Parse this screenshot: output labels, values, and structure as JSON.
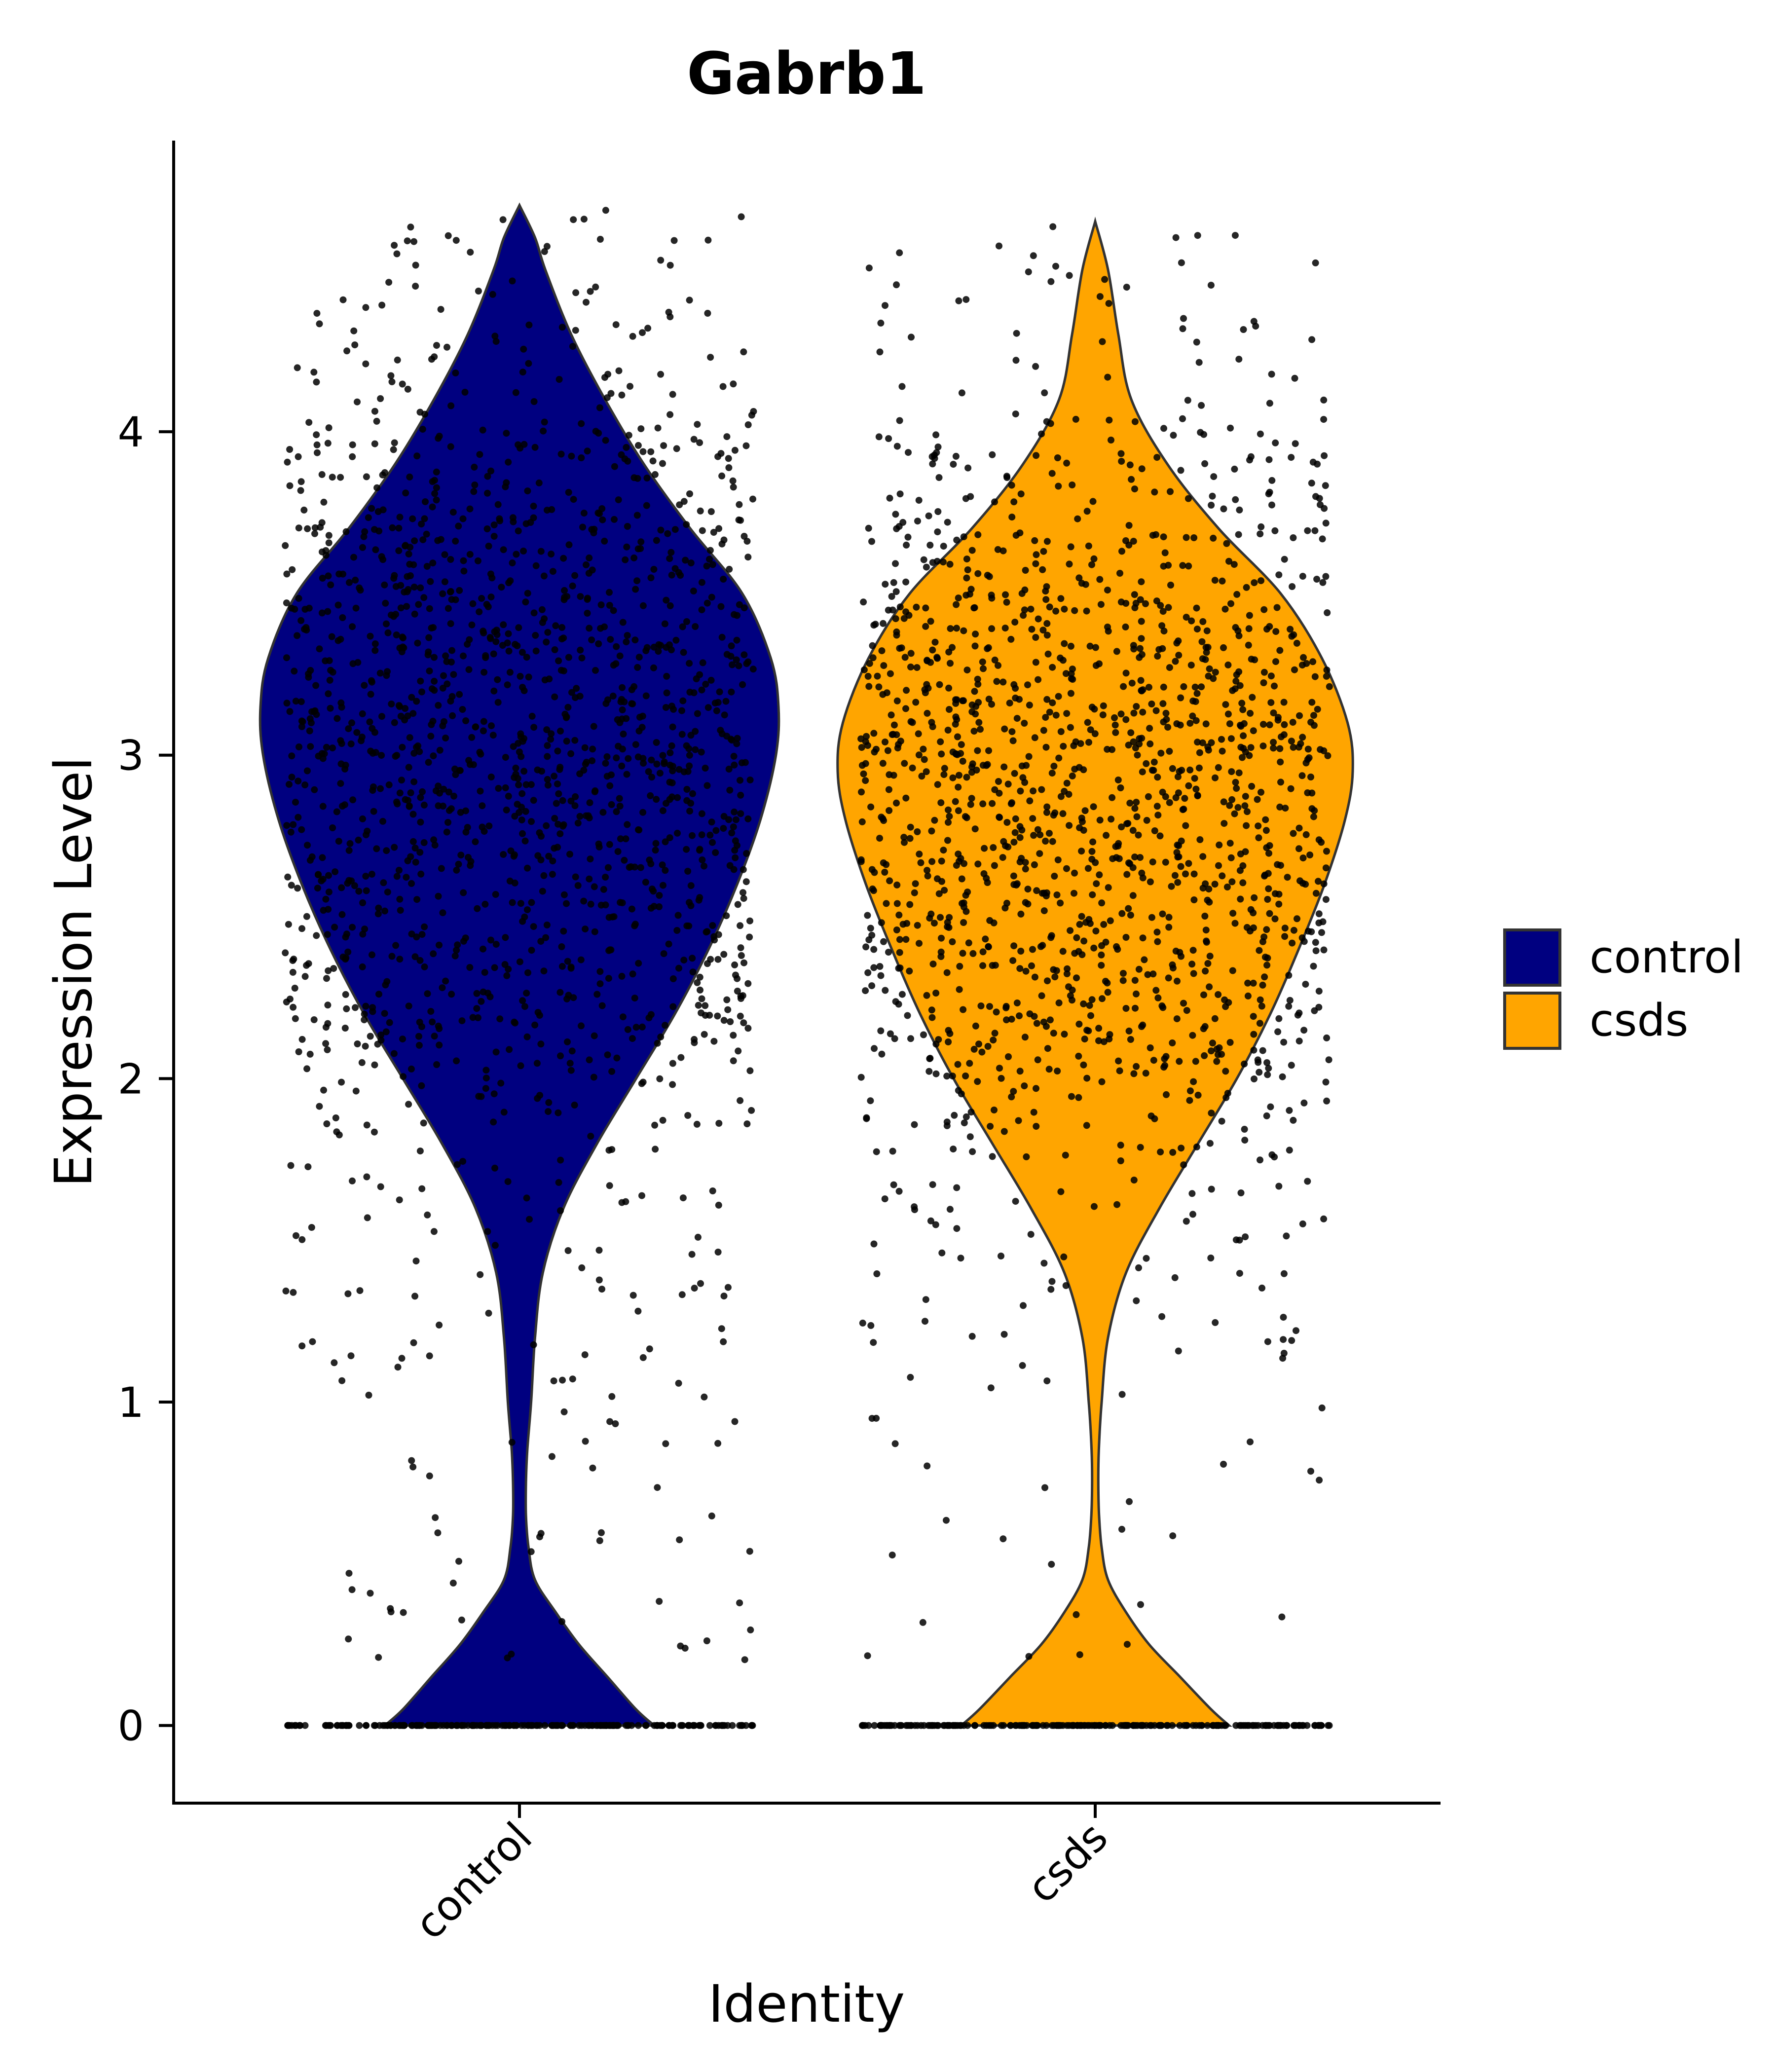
{
  "chart_data": {
    "type": "violin",
    "title": "Gabrb1",
    "xlabel": "Identity",
    "ylabel": "Expression Level",
    "ylim": [
      -0.24,
      4.9
    ],
    "yticks": [
      0,
      1,
      2,
      3,
      4
    ],
    "categories": [
      "control",
      "csds"
    ],
    "colors": {
      "control": "#000080",
      "csds": "#FFA500"
    },
    "legend": {
      "position": "right",
      "entries": [
        "control",
        "csds"
      ]
    },
    "series": [
      {
        "name": "control",
        "color": "#000080",
        "max": 4.7,
        "density": [
          [
            0.0,
            0.52
          ],
          [
            0.05,
            0.45
          ],
          [
            0.15,
            0.34
          ],
          [
            0.25,
            0.23
          ],
          [
            0.35,
            0.14
          ],
          [
            0.45,
            0.06
          ],
          [
            0.55,
            0.035
          ],
          [
            0.65,
            0.025
          ],
          [
            0.75,
            0.025
          ],
          [
            0.85,
            0.03
          ],
          [
            1.0,
            0.045
          ],
          [
            1.2,
            0.06
          ],
          [
            1.4,
            0.09
          ],
          [
            1.6,
            0.17
          ],
          [
            1.8,
            0.3
          ],
          [
            2.0,
            0.45
          ],
          [
            2.2,
            0.6
          ],
          [
            2.4,
            0.73
          ],
          [
            2.6,
            0.84
          ],
          [
            2.8,
            0.93
          ],
          [
            3.0,
            0.99
          ],
          [
            3.15,
            1.0
          ],
          [
            3.3,
            0.97
          ],
          [
            3.5,
            0.86
          ],
          [
            3.7,
            0.66
          ],
          [
            3.9,
            0.48
          ],
          [
            4.1,
            0.33
          ],
          [
            4.3,
            0.2
          ],
          [
            4.5,
            0.1
          ],
          [
            4.6,
            0.06
          ],
          [
            4.7,
            0.0
          ]
        ],
        "points": [
          {
            "value": 0,
            "count": 220
          },
          {
            "range": [
              0.2,
              1.0
            ],
            "count": 45
          },
          {
            "range": [
              1.0,
              2.0
            ],
            "count": 120
          },
          {
            "range": [
              2.0,
              3.0
            ],
            "count": 650
          },
          {
            "range": [
              3.0,
              4.0
            ],
            "count": 680
          },
          {
            "range": [
              4.0,
              4.7
            ],
            "count": 110
          }
        ]
      },
      {
        "name": "csds",
        "color": "#FFA500",
        "max": 4.65,
        "density": [
          [
            0.0,
            0.52
          ],
          [
            0.05,
            0.45
          ],
          [
            0.15,
            0.33
          ],
          [
            0.25,
            0.21
          ],
          [
            0.35,
            0.12
          ],
          [
            0.45,
            0.05
          ],
          [
            0.55,
            0.025
          ],
          [
            0.65,
            0.015
          ],
          [
            0.75,
            0.012
          ],
          [
            0.85,
            0.014
          ],
          [
            1.0,
            0.025
          ],
          [
            1.2,
            0.05
          ],
          [
            1.4,
            0.12
          ],
          [
            1.6,
            0.25
          ],
          [
            1.8,
            0.4
          ],
          [
            2.0,
            0.55
          ],
          [
            2.2,
            0.68
          ],
          [
            2.4,
            0.79
          ],
          [
            2.6,
            0.89
          ],
          [
            2.8,
            0.97
          ],
          [
            2.95,
            1.0
          ],
          [
            3.1,
            0.98
          ],
          [
            3.3,
            0.88
          ],
          [
            3.5,
            0.72
          ],
          [
            3.7,
            0.48
          ],
          [
            3.9,
            0.28
          ],
          [
            4.1,
            0.14
          ],
          [
            4.3,
            0.09
          ],
          [
            4.5,
            0.05
          ],
          [
            4.65,
            0.0
          ]
        ],
        "points": [
          {
            "value": 0,
            "count": 220
          },
          {
            "range": [
              0.2,
              1.0
            ],
            "count": 25
          },
          {
            "range": [
              1.0,
              2.0
            ],
            "count": 140
          },
          {
            "range": [
              2.0,
              3.0
            ],
            "count": 720
          },
          {
            "range": [
              3.0,
              4.0
            ],
            "count": 600
          },
          {
            "range": [
              4.0,
              4.65
            ],
            "count": 60
          }
        ]
      }
    ]
  }
}
